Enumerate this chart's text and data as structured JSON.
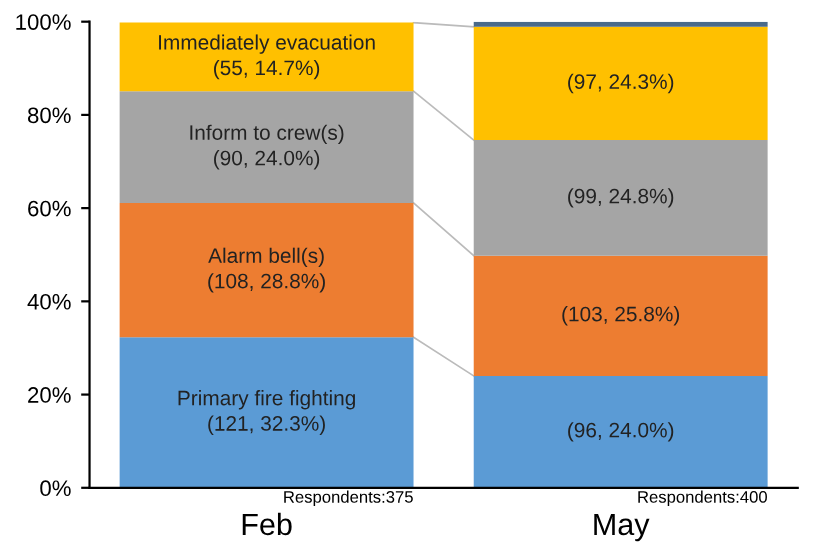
{
  "chart_data": {
    "type": "bar",
    "stacked": true,
    "categories": [
      "Feb",
      "May"
    ],
    "series": [
      {
        "name": "Primary fire fighting",
        "color": "#5b9bd5",
        "values": [
          32.3,
          24.0
        ],
        "value_labels": [
          "(121, 32.3%)",
          "(96, 24.0%)"
        ]
      },
      {
        "name": "Alarm bell(s)",
        "color": "#ed7d31",
        "values": [
          28.8,
          25.8
        ],
        "value_labels": [
          "(108, 28.8%)",
          "(103, 25.8%)"
        ]
      },
      {
        "name": "Inform to crew(s)",
        "color": "#a5a5a5",
        "values": [
          24.0,
          24.8
        ],
        "value_labels": [
          "(90, 24.0%)",
          "(99, 24.8%)"
        ]
      },
      {
        "name": "Immediately evacuation",
        "color": "#ffc000",
        "values": [
          14.7,
          24.3
        ],
        "value_labels": [
          "(55, 14.7%)",
          "(97, 24.3%)"
        ]
      },
      {
        "color": "#4a6a8a",
        "values": [
          null,
          1.1
        ]
      }
    ],
    "ylim": [
      0,
      100
    ],
    "yticks": [
      {
        "value": 0,
        "label": "0%"
      },
      {
        "value": 20,
        "label": "20%"
      },
      {
        "value": 40,
        "label": "40%"
      },
      {
        "value": 60,
        "label": "60%"
      },
      {
        "value": 80,
        "label": "80%"
      },
      {
        "value": 100,
        "label": "100%"
      }
    ],
    "annotations": [
      {
        "text": "Respondents:375",
        "x": "Feb",
        "y": 0
      },
      {
        "text": "Respondents:400",
        "x": "May",
        "y": 0
      }
    ],
    "grid": false,
    "legend": false
  }
}
